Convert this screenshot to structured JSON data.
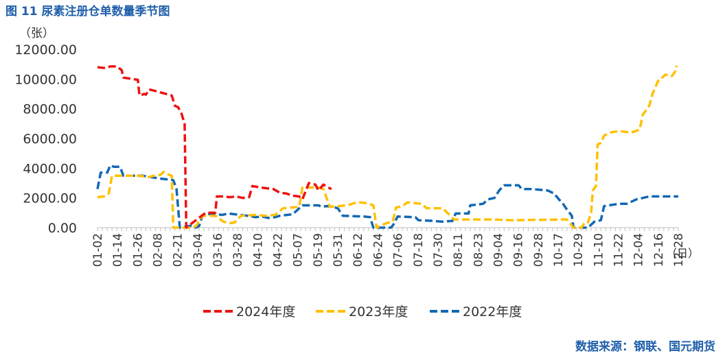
{
  "figure_title": "图 11 尿素注册仓单数量季节图",
  "source": "数据来源：钢联、国元期货",
  "colors": {
    "title": "#1f5faa",
    "2024": "#ee1111",
    "2023": "#ffc000",
    "2022": "#1167b5"
  },
  "chart_data": {
    "type": "line",
    "line_style": "dashed",
    "ylabel": "（张）",
    "xlabel": "（日）",
    "ylim": [
      0,
      12000
    ],
    "yticks": [
      "0.00",
      "2000.00",
      "4000.00",
      "6000.00",
      "8000.00",
      "10000.00",
      "12000.00"
    ],
    "xticks": [
      "01-02",
      "01-14",
      "01-26",
      "02-08",
      "02-21",
      "03-04",
      "03-16",
      "03-28",
      "04-10",
      "04-22",
      "05-07",
      "05-19",
      "05-31",
      "06-12",
      "06-24",
      "07-06",
      "07-18",
      "07-30",
      "08-11",
      "08-23",
      "09-04",
      "09-16",
      "09-28",
      "10-17",
      "10-29",
      "11-10",
      "11-22",
      "12-04",
      "12-16",
      "12-28"
    ],
    "legend_position": "bottom",
    "series": [
      {
        "name": "2024年度",
        "points": [
          [
            "01-02",
            10800
          ],
          [
            "01-06",
            10750
          ],
          [
            "01-10",
            10850
          ],
          [
            "01-14",
            10850
          ],
          [
            "01-17",
            10600
          ],
          [
            "01-18",
            10100
          ],
          [
            "01-24",
            10000
          ],
          [
            "01-27",
            9950
          ],
          [
            "01-28",
            8900
          ],
          [
            "01-31",
            9000
          ],
          [
            "02-01",
            8950
          ],
          [
            "02-03",
            9300
          ],
          [
            "02-05",
            9250
          ],
          [
            "02-17",
            8900
          ],
          [
            "02-19",
            8200
          ],
          [
            "02-21",
            8100
          ],
          [
            "02-23",
            7700
          ],
          [
            "02-25",
            7000
          ],
          [
            "02-26",
            0
          ],
          [
            "03-10",
            1000
          ],
          [
            "03-16",
            1000
          ],
          [
            "03-17",
            2100
          ],
          [
            "03-21",
            2100
          ],
          [
            "03-25",
            2050
          ],
          [
            "03-29",
            2100
          ],
          [
            "04-02",
            2000
          ],
          [
            "04-06",
            2050
          ],
          [
            "04-08",
            2800
          ],
          [
            "04-13",
            2700
          ],
          [
            "04-17",
            2650
          ],
          [
            "04-21",
            2600
          ],
          [
            "04-25",
            2350
          ],
          [
            "04-29",
            2300
          ],
          [
            "05-03",
            2150
          ],
          [
            "05-07",
            2100
          ],
          [
            "05-09",
            1900
          ],
          [
            "05-13",
            3000
          ],
          [
            "05-17",
            2900
          ],
          [
            "05-19",
            2500
          ],
          [
            "05-22",
            2900
          ],
          [
            "05-25",
            2700
          ],
          [
            "05-27",
            2600
          ]
        ]
      },
      {
        "name": "2023年度",
        "points": [
          [
            "01-02",
            2050
          ],
          [
            "01-06",
            2100
          ],
          [
            "01-09",
            2300
          ],
          [
            "01-11",
            3500
          ],
          [
            "01-26",
            3500
          ],
          [
            "01-31",
            3450
          ],
          [
            "02-03",
            3400
          ],
          [
            "02-06",
            3500
          ],
          [
            "02-10",
            3550
          ],
          [
            "02-12",
            3750
          ],
          [
            "02-14",
            3600
          ],
          [
            "02-17",
            3500
          ],
          [
            "02-18",
            0
          ],
          [
            "03-01",
            0
          ],
          [
            "03-04",
            100
          ],
          [
            "03-08",
            800
          ],
          [
            "03-16",
            800
          ],
          [
            "03-21",
            400
          ],
          [
            "03-25",
            300
          ],
          [
            "03-28",
            350
          ],
          [
            "04-01",
            800
          ],
          [
            "04-10",
            850
          ],
          [
            "04-16",
            800
          ],
          [
            "04-22",
            850
          ],
          [
            "04-27",
            1300
          ],
          [
            "05-02",
            1350
          ],
          [
            "05-07",
            1400
          ],
          [
            "05-09",
            2700
          ],
          [
            "05-19",
            2700
          ],
          [
            "05-22",
            2600
          ],
          [
            "05-26",
            1400
          ],
          [
            "06-06",
            1500
          ],
          [
            "06-10",
            1650
          ],
          [
            "06-14",
            1700
          ],
          [
            "06-18",
            1650
          ],
          [
            "06-22",
            1500
          ],
          [
            "06-24",
            0
          ],
          [
            "06-30",
            300
          ],
          [
            "07-04",
            400
          ],
          [
            "07-06",
            1350
          ],
          [
            "07-10",
            1450
          ],
          [
            "07-13",
            1700
          ],
          [
            "07-18",
            1650
          ],
          [
            "07-22",
            1600
          ],
          [
            "07-25",
            1300
          ],
          [
            "08-04",
            1300
          ],
          [
            "08-11",
            550
          ],
          [
            "09-04",
            550
          ],
          [
            "09-16",
            500
          ],
          [
            "10-17",
            550
          ],
          [
            "10-20",
            550
          ],
          [
            "10-24",
            0
          ],
          [
            "10-29",
            0
          ],
          [
            "10-31",
            350
          ],
          [
            "11-02",
            350
          ],
          [
            "11-04",
            1000
          ],
          [
            "11-05",
            2500
          ],
          [
            "11-07",
            2800
          ],
          [
            "11-08",
            5600
          ],
          [
            "11-10",
            5700
          ],
          [
            "11-12",
            6200
          ],
          [
            "11-16",
            6400
          ],
          [
            "11-18",
            6450
          ],
          [
            "11-22",
            6500
          ],
          [
            "11-25",
            6450
          ],
          [
            "11-29",
            6400
          ],
          [
            "12-04",
            6600
          ],
          [
            "12-06",
            7600
          ],
          [
            "12-10",
            8200
          ],
          [
            "12-12",
            9000
          ],
          [
            "12-16",
            10000
          ],
          [
            "12-18",
            10100
          ],
          [
            "12-20",
            10300
          ],
          [
            "12-24",
            10200
          ],
          [
            "12-26",
            10500
          ],
          [
            "12-27",
            10900
          ]
        ]
      },
      {
        "name": "2022年度",
        "points": [
          [
            "01-02",
            2600
          ],
          [
            "01-04",
            3700
          ],
          [
            "01-08",
            3700
          ],
          [
            "01-10",
            4200
          ],
          [
            "01-12",
            4100
          ],
          [
            "01-16",
            4100
          ],
          [
            "01-18",
            3500
          ],
          [
            "01-30",
            3500
          ],
          [
            "02-04",
            3400
          ],
          [
            "02-10",
            3300
          ],
          [
            "02-18",
            3200
          ],
          [
            "02-20",
            2600
          ],
          [
            "02-22",
            0
          ],
          [
            "03-02",
            150
          ],
          [
            "03-04",
            0
          ],
          [
            "03-06",
            100
          ],
          [
            "03-08",
            800
          ],
          [
            "03-10",
            900
          ],
          [
            "03-16",
            950
          ],
          [
            "03-20",
            850
          ],
          [
            "03-24",
            950
          ],
          [
            "03-28",
            900
          ],
          [
            "04-01",
            850
          ],
          [
            "04-05",
            800
          ],
          [
            "04-10",
            700
          ],
          [
            "04-14",
            750
          ],
          [
            "04-18",
            650
          ],
          [
            "04-22",
            700
          ],
          [
            "04-25",
            800
          ],
          [
            "04-29",
            850
          ],
          [
            "05-03",
            900
          ],
          [
            "05-09",
            1500
          ],
          [
            "05-19",
            1500
          ],
          [
            "05-21",
            1400
          ],
          [
            "05-24",
            1450
          ],
          [
            "05-28",
            1400
          ],
          [
            "05-31",
            1300
          ],
          [
            "06-03",
            800
          ],
          [
            "06-16",
            750
          ],
          [
            "06-20",
            700
          ],
          [
            "06-22",
            0
          ],
          [
            "07-03",
            0
          ],
          [
            "07-05",
            300
          ],
          [
            "07-07",
            750
          ],
          [
            "07-18",
            700
          ],
          [
            "07-20",
            500
          ],
          [
            "07-30",
            450
          ],
          [
            "08-03",
            400
          ],
          [
            "08-10",
            450
          ],
          [
            "08-12",
            950
          ],
          [
            "08-20",
            950
          ],
          [
            "08-21",
            1500
          ],
          [
            "08-29",
            1600
          ],
          [
            "09-01",
            1900
          ],
          [
            "09-05",
            2000
          ],
          [
            "09-08",
            2500
          ],
          [
            "09-11",
            2850
          ],
          [
            "09-16",
            2850
          ],
          [
            "09-20",
            2850
          ],
          [
            "09-22",
            2600
          ],
          [
            "09-28",
            2600
          ],
          [
            "10-03",
            2550
          ],
          [
            "10-08",
            2500
          ],
          [
            "10-12",
            2300
          ],
          [
            "10-15",
            1900
          ],
          [
            "10-17",
            1700
          ],
          [
            "10-20",
            1200
          ],
          [
            "10-23",
            800
          ],
          [
            "10-24",
            0
          ],
          [
            "11-02",
            0
          ],
          [
            "11-06",
            400
          ],
          [
            "11-10",
            500
          ],
          [
            "11-12",
            1450
          ],
          [
            "11-18",
            1550
          ],
          [
            "11-22",
            1600
          ],
          [
            "11-26",
            1600
          ],
          [
            "11-28",
            1700
          ],
          [
            "12-02",
            1900
          ],
          [
            "12-06",
            2000
          ],
          [
            "12-10",
            2100
          ],
          [
            "12-28",
            2100
          ]
        ]
      }
    ]
  }
}
